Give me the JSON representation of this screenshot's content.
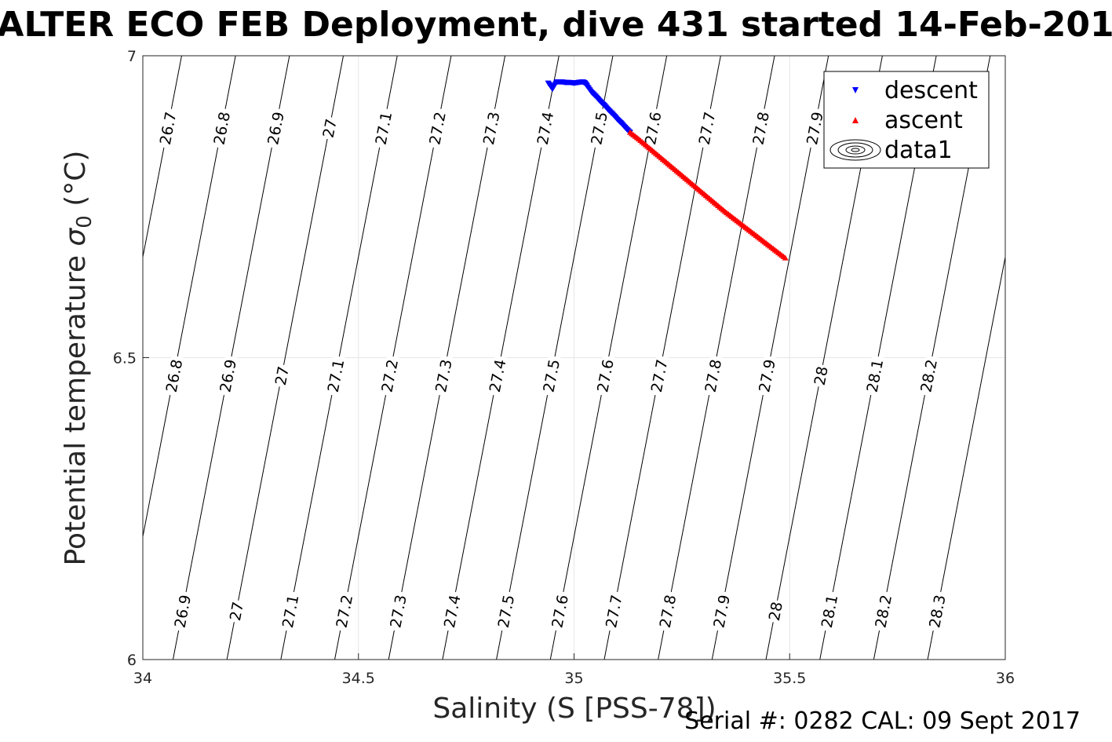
{
  "title": "ALTER ECO FEB Deployment, dive 431 started 14-Feb-201",
  "footer": "Serial #: 0282  CAL: 09 Sept 2017",
  "chart_data": {
    "type": "scatter",
    "xlabel": "Salinity (S [PSS-78])",
    "ylabel_main": "Potential temperature ",
    "ylabel_sigma": "σ",
    "ylabel_sub": "0",
    "ylabel_unit": " (°C)",
    "xlim": [
      34,
      36
    ],
    "ylim": [
      6,
      7
    ],
    "x_ticks": [
      "34",
      "34.5",
      "35",
      "35.5",
      "36"
    ],
    "y_ticks": [
      "6",
      "6.5",
      "7"
    ],
    "grid": true,
    "legend_position": "top-right",
    "legend": [
      "descent",
      "ascent",
      "data1"
    ],
    "series": [
      {
        "name": "descent",
        "marker": "triangle-down",
        "color": "#0000ff",
        "points": [
          [
            34.94,
            6.955
          ],
          [
            34.95,
            6.945
          ],
          [
            34.96,
            6.957
          ],
          [
            34.97,
            6.957
          ],
          [
            34.98,
            6.956
          ],
          [
            34.99,
            6.956
          ],
          [
            35.0,
            6.955
          ],
          [
            35.01,
            6.956
          ],
          [
            35.02,
            6.957
          ],
          [
            35.025,
            6.955
          ],
          [
            35.03,
            6.95
          ],
          [
            35.04,
            6.94
          ],
          [
            35.05,
            6.933
          ],
          [
            35.06,
            6.925
          ],
          [
            35.07,
            6.918
          ],
          [
            35.08,
            6.91
          ],
          [
            35.09,
            6.903
          ],
          [
            35.1,
            6.895
          ],
          [
            35.11,
            6.888
          ],
          [
            35.12,
            6.88
          ],
          [
            35.13,
            6.873
          ]
        ]
      },
      {
        "name": "ascent",
        "marker": "triangle-up",
        "color": "#ff0000",
        "points": [
          [
            35.13,
            6.873
          ],
          [
            35.15,
            6.862
          ],
          [
            35.17,
            6.85
          ],
          [
            35.19,
            6.838
          ],
          [
            35.21,
            6.826
          ],
          [
            35.23,
            6.814
          ],
          [
            35.25,
            6.802
          ],
          [
            35.27,
            6.79
          ],
          [
            35.29,
            6.778
          ],
          [
            35.31,
            6.766
          ],
          [
            35.33,
            6.754
          ],
          [
            35.35,
            6.742
          ],
          [
            35.37,
            6.731
          ],
          [
            35.39,
            6.72
          ],
          [
            35.41,
            6.709
          ],
          [
            35.43,
            6.698
          ],
          [
            35.45,
            6.687
          ],
          [
            35.47,
            6.676
          ],
          [
            35.49,
            6.665
          ]
        ]
      }
    ],
    "contours": {
      "color": "#000000",
      "levels": [
        "26.7",
        "26.8",
        "26.9",
        "27",
        "27.1",
        "27.2",
        "27.3",
        "27.4",
        "27.5",
        "27.6",
        "27.7",
        "27.8",
        "27.9",
        "28",
        "28.1",
        "28.2",
        "28.3"
      ],
      "lines": [
        {
          "level": "26.7",
          "s_bottom": 33.82,
          "s_top": 34.09
        },
        {
          "level": "26.8",
          "s_bottom": 33.945,
          "s_top": 34.215
        },
        {
          "level": "26.9",
          "s_bottom": 34.07,
          "s_top": 34.34
        },
        {
          "level": "27",
          "s_bottom": 34.195,
          "s_top": 34.465
        },
        {
          "level": "27.1",
          "s_bottom": 34.32,
          "s_top": 34.59
        },
        {
          "level": "27.2",
          "s_bottom": 34.445,
          "s_top": 34.715
        },
        {
          "level": "27.3",
          "s_bottom": 34.57,
          "s_top": 34.84
        },
        {
          "level": "27.4",
          "s_bottom": 34.695,
          "s_top": 34.965
        },
        {
          "level": "27.5",
          "s_bottom": 34.82,
          "s_top": 35.09
        },
        {
          "level": "27.6",
          "s_bottom": 34.945,
          "s_top": 35.215
        },
        {
          "level": "27.7",
          "s_bottom": 35.07,
          "s_top": 35.34
        },
        {
          "level": "27.8",
          "s_bottom": 35.195,
          "s_top": 35.465
        },
        {
          "level": "27.9",
          "s_bottom": 35.32,
          "s_top": 35.59
        },
        {
          "level": "28",
          "s_bottom": 35.445,
          "s_top": 35.715
        },
        {
          "level": "28.1",
          "s_bottom": 35.57,
          "s_top": 35.84
        },
        {
          "level": "28.2",
          "s_bottom": 35.695,
          "s_top": 35.965
        },
        {
          "level": "28.3",
          "s_bottom": 35.82,
          "s_top": 36.09
        }
      ],
      "label_rows": [
        {
          "theta": 6.88,
          "labels": [
            "26.7",
            "26.8",
            "26.9",
            "27",
            "27.1",
            "27.2",
            "27.3",
            "27.4",
            "27.5",
            "27.6",
            "27.7",
            "27.8",
            "27.9",
            "28",
            "28.1",
            "28.2"
          ]
        },
        {
          "theta": 6.47,
          "labels": [
            "26.8",
            "26.9",
            "27",
            "27.1",
            "27.2",
            "27.3",
            "27.4",
            "27.5",
            "27.6",
            "27.7",
            "27.8",
            "27.9",
            "28",
            "28.1",
            "28.2"
          ]
        },
        {
          "theta": 6.08,
          "labels": [
            "26.8",
            "26.9",
            "27",
            "27.1",
            "27.2",
            "27.3",
            "27.4",
            "27.5",
            "27.6",
            "27.7",
            "27.8",
            "27.9",
            "28",
            "28.1",
            "28.2",
            "28.3"
          ]
        }
      ]
    }
  }
}
